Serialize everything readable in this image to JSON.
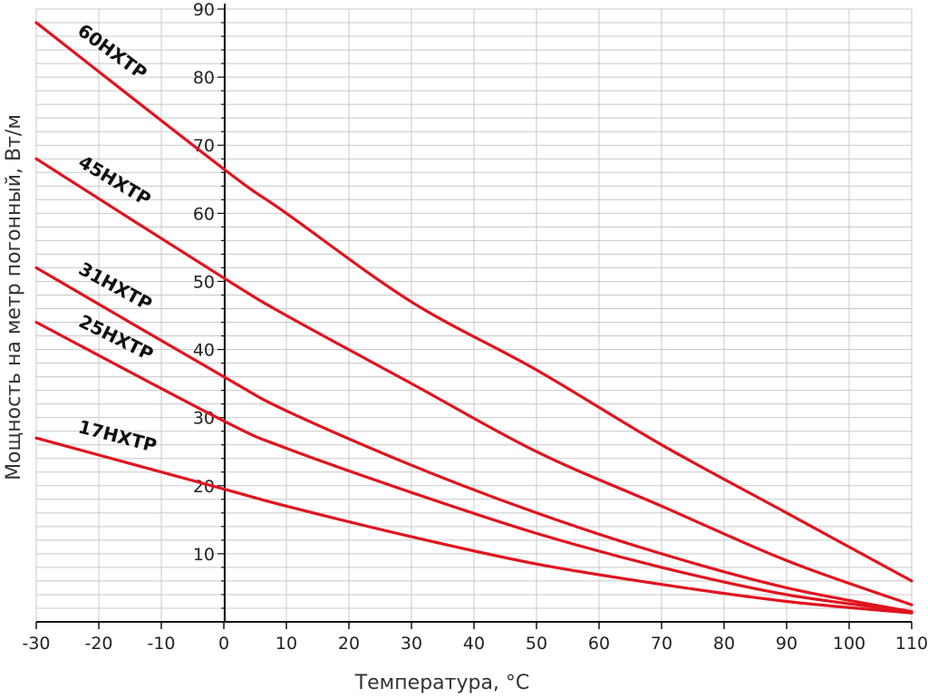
{
  "chart_data": {
    "type": "line",
    "title": "",
    "xlabel": "Температура, °C",
    "ylabel": "Мощность на метр погонный, Вт/м",
    "xlim": [
      -30,
      110
    ],
    "ylim": [
      0,
      90
    ],
    "x_ticks": [
      -30,
      -20,
      -10,
      0,
      10,
      20,
      30,
      40,
      50,
      60,
      70,
      80,
      90,
      100,
      110
    ],
    "y_ticks": [
      10,
      20,
      30,
      40,
      50,
      60,
      70,
      80,
      90
    ],
    "grid": true,
    "legend": "labels on lines",
    "line_color": "#e0141e",
    "series": [
      {
        "name": "60HXTP",
        "x": [
          -30,
          0,
          10,
          30,
          50,
          70,
          90,
          110
        ],
        "values": [
          88,
          66.5,
          60,
          47,
          37,
          26,
          16,
          6
        ]
      },
      {
        "name": "45HXTP",
        "x": [
          -30,
          0,
          10,
          30,
          50,
          70,
          90,
          110
        ],
        "values": [
          68,
          50.5,
          45,
          35,
          25,
          17,
          9,
          2.5
        ]
      },
      {
        "name": "31HXTP",
        "x": [
          -30,
          0,
          10,
          30,
          50,
          70,
          90,
          110
        ],
        "values": [
          52,
          36,
          31,
          23,
          16,
          10,
          5,
          1.5
        ]
      },
      {
        "name": "25HXTP",
        "x": [
          -30,
          0,
          10,
          30,
          50,
          70,
          90,
          110
        ],
        "values": [
          44,
          29.5,
          25.5,
          19,
          13,
          8,
          4,
          1.5
        ]
      },
      {
        "name": "17HXTP",
        "x": [
          -30,
          0,
          10,
          30,
          50,
          70,
          90,
          110
        ],
        "values": [
          27,
          19.5,
          17,
          12.5,
          8.5,
          5.5,
          3,
          1.3
        ]
      }
    ]
  }
}
